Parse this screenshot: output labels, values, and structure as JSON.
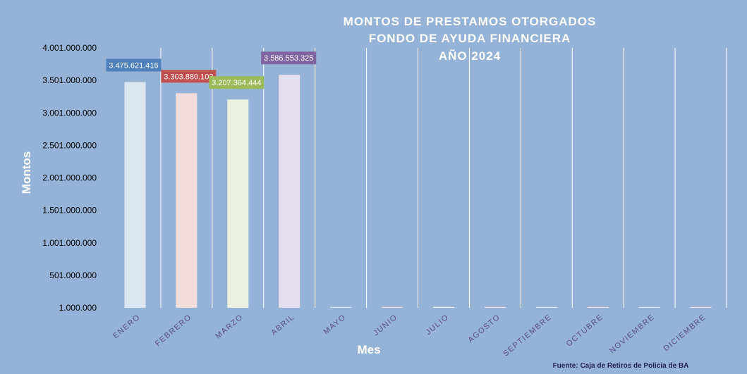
{
  "chart_data": {
    "type": "bar",
    "title_lines": [
      "MONTOS  DE  PRESTAMOS  OTORGADOS",
      "FONDO DE AYUDA  FINANCIERA",
      "AÑO  2024"
    ],
    "xlabel": "Mes",
    "ylabel": "Montos",
    "categories": [
      "ENERO",
      "FEBRERO",
      "MARZO",
      "ABRIL",
      "MAYO",
      "JUNIO",
      "JULIO",
      "AGOSTO",
      "SEPTIEMBRE",
      "OCTUBRE",
      "NOVIEMBRE",
      "DICIEMBRE"
    ],
    "values": [
      3475621416,
      3303880103,
      3207364444,
      3586553325,
      0,
      0,
      0,
      0,
      0,
      0,
      0,
      0
    ],
    "data_labels": [
      "3.475.621.416",
      "3.303.880.103",
      "3.207.364.444",
      "3.586.553.325",
      null,
      null,
      null,
      null,
      null,
      null,
      null,
      null
    ],
    "yticks": [
      1000000,
      501000000,
      1001000000,
      1501000000,
      2001000000,
      2501000000,
      3001000000,
      3501000000,
      4001000000
    ],
    "ytick_labels": [
      "1.000.000",
      "501.000.000",
      "1.001.000.000",
      "1.501.000.000",
      "2.001.000.000",
      "2.501.000.000",
      "3.001.000.000",
      "3.501.000.000",
      "4.001.000.000"
    ],
    "ylim": [
      1000000,
      4001000000
    ],
    "grid": "vertical",
    "source_note": "Fuente: Caja de Retiros de Policia de BA",
    "colors": {
      "background": "#95b3d7",
      "bars": [
        "#dce6f1",
        "#f2dcdb",
        "#ebf1de",
        "#e4dfec",
        "#dce6f1",
        "#f2dcdb",
        "#ebf1de",
        "#f2dcdb",
        "#dce6f1",
        "#f2dcdb",
        "#dce6f1",
        "#f2dcdb"
      ],
      "label_boxes": [
        "#4f81bd",
        "#c0504d",
        "#9bbb59",
        "#8064a2"
      ],
      "x_tick_text": "#5b4a8a"
    }
  }
}
